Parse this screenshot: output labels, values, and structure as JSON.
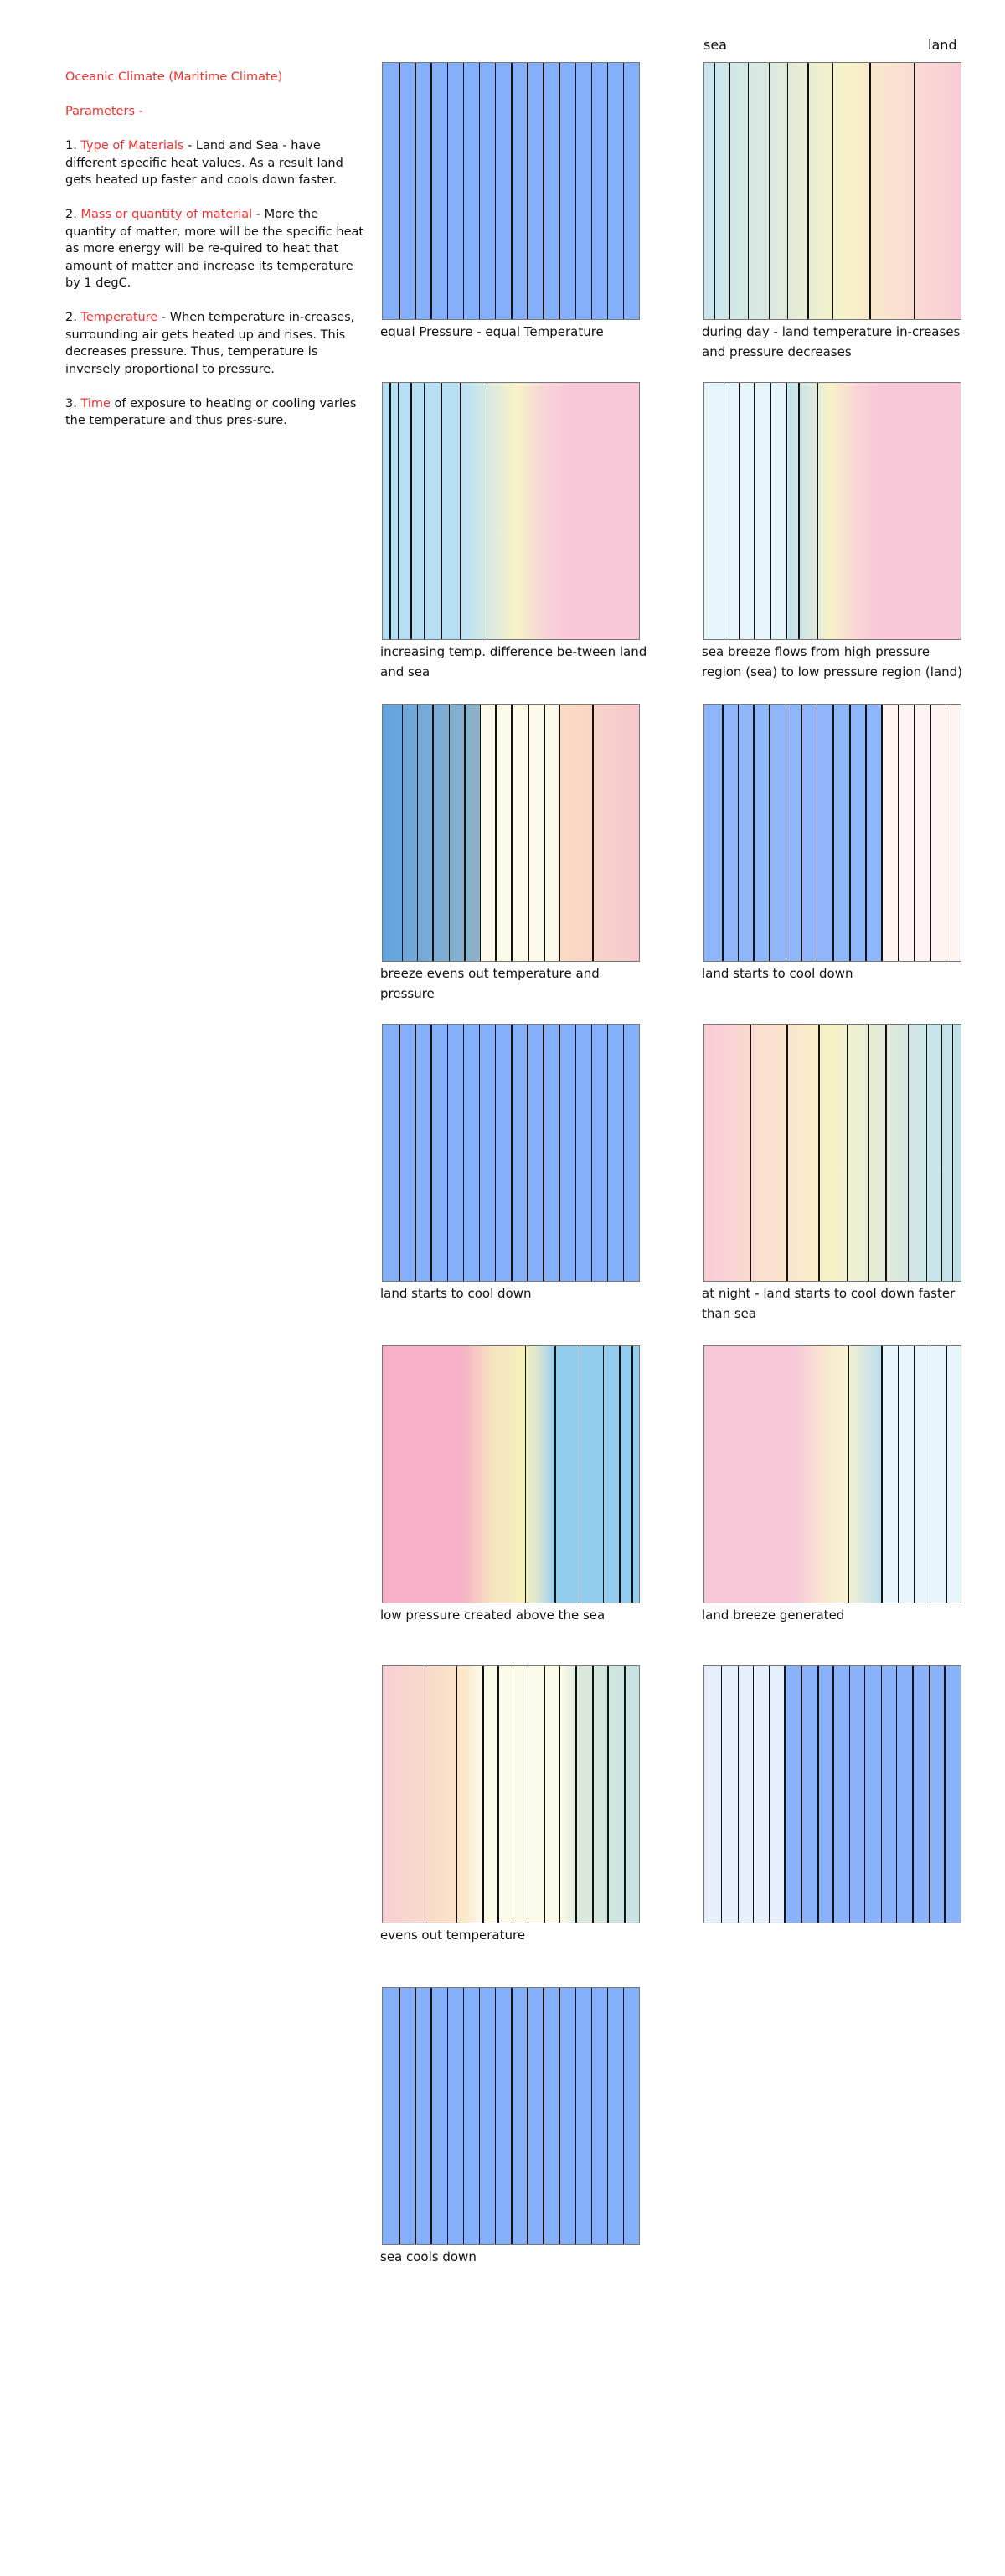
{
  "notes": {
    "title": "Oceanic Climate (Maritime Climate)",
    "parameters_heading": "Parameters -",
    "items": [
      {
        "prefix": "1. ",
        "term": "Type of Materials",
        "text": " - Land and Sea - have different specific heat values. As a result land gets heated up faster and cools down faster."
      },
      {
        "prefix": "2. ",
        "term": "Mass or quantity of material",
        "text": " - More the quantity of matter, more will be the specific heat as more energy will be re-quired to heat that amount of matter and increase its temperature by 1 degC."
      },
      {
        "prefix": "2. ",
        "term": "Temperature",
        "text": " - When temperature in-creases, surrounding air gets heated up and rises. This decreases pressure. Thus, temperature is inversely proportional to pressure."
      },
      {
        "prefix": "3. ",
        "term": "Time",
        "text": " of exposure to heating or cooling varies the temperature and thus pres-sure."
      }
    ]
  },
  "labels": {
    "sea": "sea",
    "land": "land"
  },
  "colors": {
    "accent_red": "#f03030",
    "cool_blue": "#84b0fb",
    "warm_pink": "#f8c8d8"
  },
  "panels": [
    {
      "caption": "equal Pressure - equal Temperature"
    },
    {
      "caption": "during day - land temperature in-creases and pressure decreases"
    },
    {
      "caption": "increasing temp. difference be-tween land and sea"
    },
    {
      "caption": "sea breeze flows from high pressure region (sea) to low pressure region (land)"
    },
    {
      "caption": "breeze evens out temperature and pressure"
    },
    {
      "caption": "land starts to cool down"
    },
    {
      "caption": "land starts to cool down"
    },
    {
      "caption": "at night - land starts to cool down faster than sea"
    },
    {
      "caption": "low pressure created above the sea"
    },
    {
      "caption": "land breeze generated"
    },
    {
      "caption": "evens out temperature"
    },
    {
      "caption": ""
    },
    {
      "caption": "sea cools down"
    }
  ]
}
